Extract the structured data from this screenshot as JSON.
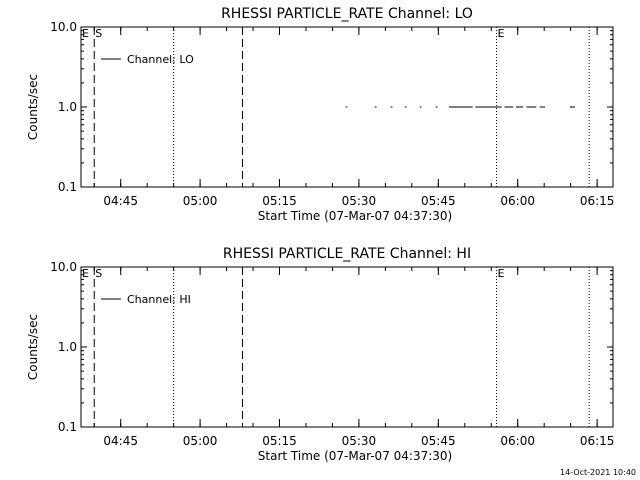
{
  "chart_data": [
    {
      "type": "line",
      "title": "RHESSI PARTICLE_RATE Channel: LO",
      "xlabel": "Start Time (07-Mar-07 04:37:30)",
      "ylabel": "Counts/sec",
      "yscale": "log",
      "ylim": [
        0.1,
        10.0
      ],
      "xlim": [
        "04:37:30",
        "06:18:00"
      ],
      "x_ticks": [
        "04:45",
        "05:00",
        "05:15",
        "05:30",
        "05:45",
        "06:00",
        "06:15"
      ],
      "y_ticks": [
        "0.1",
        "1.0",
        "10.0"
      ],
      "legend": "top-left",
      "series": [
        {
          "name": "Channel: LO",
          "segments": [
            [
              "05:27:30",
              "05:27:50"
            ],
            [
              "05:33:00",
              "05:33:20"
            ],
            [
              "05:36:00",
              "05:36:20"
            ],
            [
              "05:38:40",
              "05:39:00"
            ],
            [
              "05:41:30",
              "05:41:50"
            ],
            [
              "05:44:30",
              "05:44:50"
            ],
            [
              "05:47:00",
              "05:51:30"
            ],
            [
              "05:52:00",
              "05:57:00"
            ],
            [
              "05:57:30",
              "05:59:10"
            ],
            [
              "05:59:40",
              "06:01:00"
            ],
            [
              "06:01:40",
              "06:03:30"
            ],
            [
              "06:04:10",
              "06:05:10"
            ],
            [
              "06:09:50",
              "06:10:50"
            ]
          ],
          "value": 1.0
        }
      ],
      "vlines": [
        {
          "x": "04:40:00",
          "style": "dashed"
        },
        {
          "x": "04:55:00",
          "style": "dotted"
        },
        {
          "x": "05:08:00",
          "style": "dashed"
        },
        {
          "x": "05:56:00",
          "style": "dotted"
        },
        {
          "x": "06:13:30",
          "style": "dotted"
        }
      ],
      "markers": [
        {
          "label": "E",
          "x": "04:37:30"
        },
        {
          "label": "S",
          "x": "04:40:00"
        },
        {
          "label": "E",
          "x": "05:56:00"
        }
      ]
    },
    {
      "type": "line",
      "title": "RHESSI PARTICLE_RATE Channel: HI",
      "xlabel": "Start Time (07-Mar-07 04:37:30)",
      "ylabel": "Counts/sec",
      "yscale": "log",
      "ylim": [
        0.1,
        10.0
      ],
      "xlim": [
        "04:37:30",
        "06:18:00"
      ],
      "x_ticks": [
        "04:45",
        "05:00",
        "05:15",
        "05:30",
        "05:45",
        "06:00",
        "06:15"
      ],
      "y_ticks": [
        "0.1",
        "1.0",
        "10.0"
      ],
      "legend": "top-left",
      "series": [
        {
          "name": "Channel: HI",
          "segments": [],
          "value": null
        }
      ],
      "vlines": [
        {
          "x": "04:40:00",
          "style": "dashed"
        },
        {
          "x": "04:55:00",
          "style": "dotted"
        },
        {
          "x": "05:08:00",
          "style": "dashed"
        },
        {
          "x": "05:56:00",
          "style": "dotted"
        },
        {
          "x": "06:13:30",
          "style": "dotted"
        }
      ],
      "markers": [
        {
          "label": "E",
          "x": "04:37:30"
        },
        {
          "label": "S",
          "x": "04:40:00"
        },
        {
          "label": "E",
          "x": "05:56:00"
        }
      ]
    }
  ],
  "footer": {
    "timestamp": "14-Oct-2021 10:40"
  }
}
